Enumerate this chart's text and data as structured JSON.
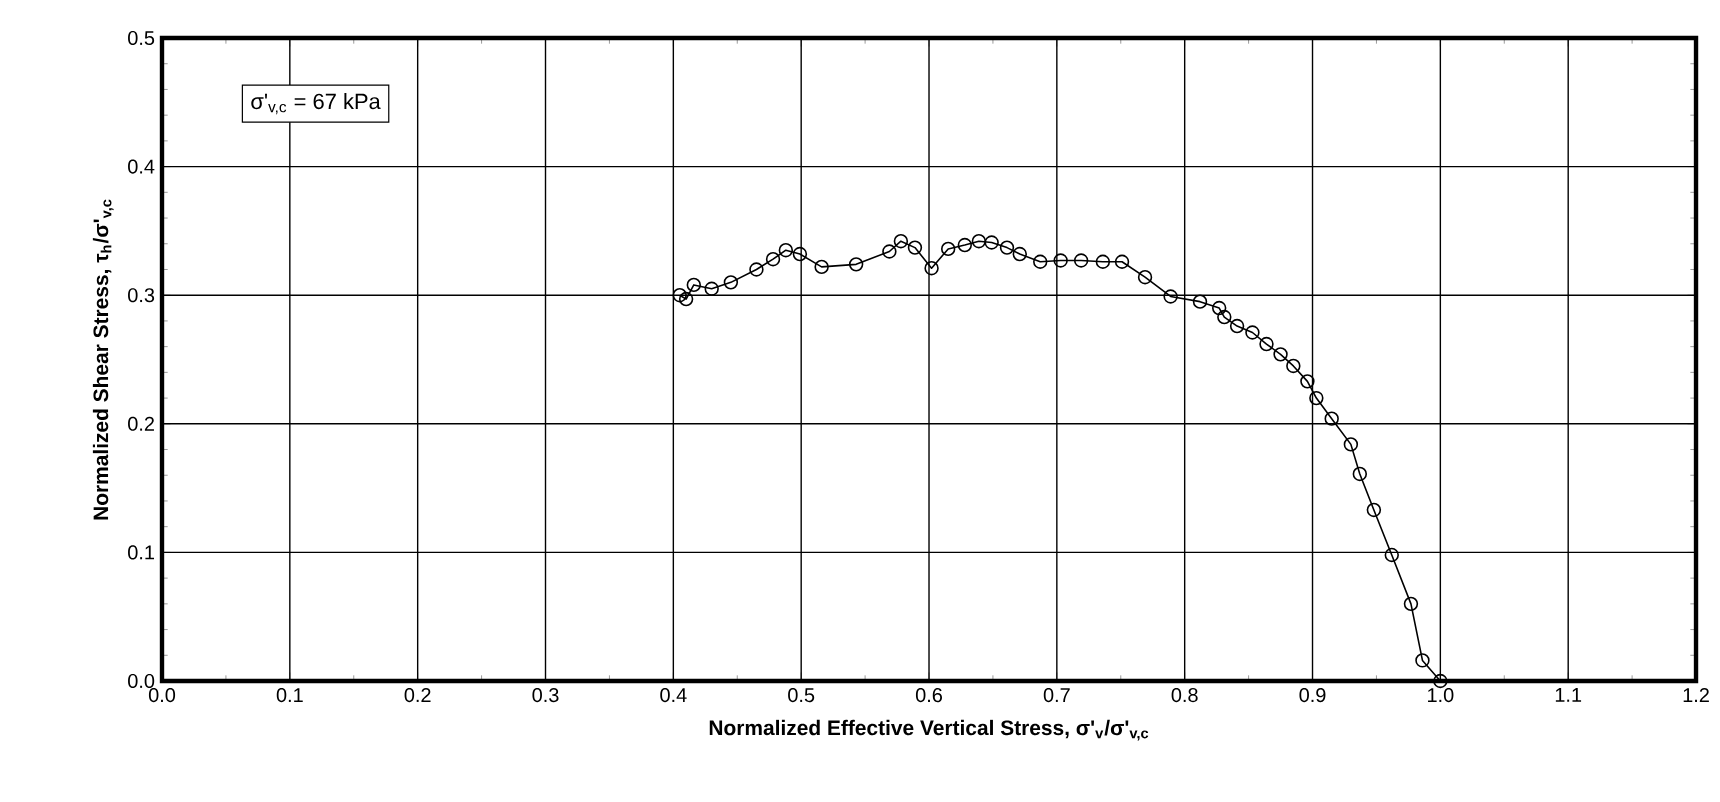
{
  "chart_data": {
    "type": "line",
    "xlabel": "Normalized Effective Vertical Stress, σ'$_{v}$/σ'$_{v,c}$",
    "ylabel": "Normalized Shear Stress, τ$_{h}$/σ'$_{v,c}$",
    "annotations": [
      "σ'$_{v,c}$ = 67 kPa"
    ],
    "xlim": [
      0,
      1.2
    ],
    "ylim": [
      0,
      0.5
    ],
    "xticks": [
      {
        "value": 0,
        "label": "0.0"
      },
      {
        "value": 0.1,
        "label": "0.1"
      },
      {
        "value": 0.2,
        "label": "0.2"
      },
      {
        "value": 0.3,
        "label": "0.3"
      },
      {
        "value": 0.4,
        "label": "0.4"
      },
      {
        "value": 0.5,
        "label": "0.5"
      },
      {
        "value": 0.6,
        "label": "0.6"
      },
      {
        "value": 0.7,
        "label": "0.7"
      },
      {
        "value": 0.8,
        "label": "0.8"
      },
      {
        "value": 0.9,
        "label": "0.9"
      },
      {
        "value": 1,
        "label": "1.0"
      },
      {
        "value": 1.1,
        "label": "1.1"
      },
      {
        "value": 1.2,
        "label": "1.2"
      }
    ],
    "yticks": [
      {
        "value": 0,
        "label": "0.0"
      },
      {
        "value": 0.1,
        "label": "0.1"
      },
      {
        "value": 0.2,
        "label": "0.2"
      },
      {
        "value": 0.3,
        "label": "0.3"
      },
      {
        "value": 0.4,
        "label": "0.4"
      },
      {
        "value": 0.5,
        "label": "0.5"
      }
    ],
    "grid": true,
    "marker": "circle",
    "line_style": "solid",
    "series": [
      {
        "color": "#000000",
        "x": [
          0.405,
          0.41,
          0.416,
          0.43,
          0.445,
          0.465,
          0.478,
          0.488,
          0.499,
          0.516,
          0.543,
          0.569,
          0.578,
          0.589,
          0.602,
          0.615,
          0.628,
          0.639,
          0.649,
          0.661,
          0.671,
          0.687,
          0.703,
          0.719,
          0.736,
          0.751,
          0.769,
          0.789,
          0.812,
          0.827,
          0.831,
          0.841,
          0.853,
          0.864,
          0.875,
          0.885,
          0.896,
          0.903,
          0.915,
          0.93,
          0.937,
          0.948,
          0.962,
          0.977,
          0.986,
          1.0
        ],
        "values": [
          0.3,
          0.297,
          0.308,
          0.305,
          0.31,
          0.32,
          0.328,
          0.335,
          0.332,
          0.322,
          0.324,
          0.334,
          0.342,
          0.337,
          0.321,
          0.336,
          0.339,
          0.342,
          0.341,
          0.337,
          0.332,
          0.326,
          0.327,
          0.327,
          0.326,
          0.326,
          0.314,
          0.299,
          0.295,
          0.29,
          0.283,
          0.276,
          0.271,
          0.262,
          0.254,
          0.245,
          0.233,
          0.22,
          0.204,
          0.184,
          0.161,
          0.133,
          0.098,
          0.06,
          0.016,
          0.0
        ]
      }
    ]
  }
}
